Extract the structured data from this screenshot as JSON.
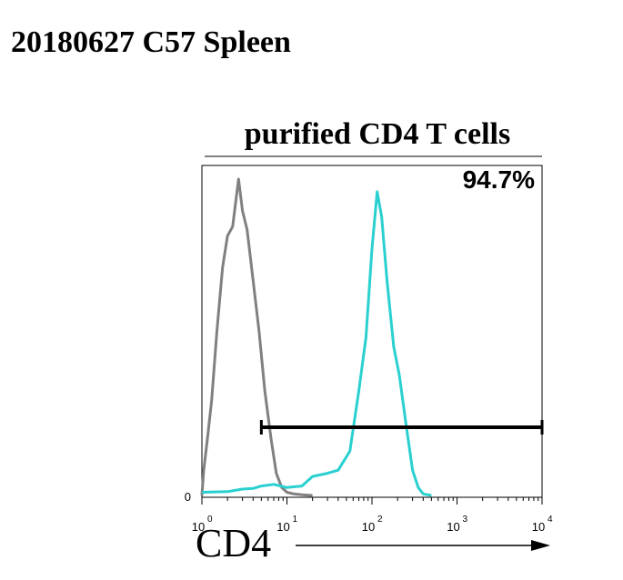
{
  "figure_title": "20180627 C57 Spleen",
  "chart_data": {
    "type": "line",
    "title": "purified CD4 T cells",
    "xlabel": "CD4",
    "x_scale": "log",
    "xlim": [
      1,
      10000
    ],
    "x_ticks": [
      {
        "base": "10",
        "exp": "0",
        "value": 1
      },
      {
        "base": "10",
        "exp": "1",
        "value": 10
      },
      {
        "base": "10",
        "exp": "2",
        "value": 100
      },
      {
        "base": "10",
        "exp": "3",
        "value": 1000
      },
      {
        "base": "10",
        "exp": "4",
        "value": 10000
      }
    ],
    "y_tick_label": "0",
    "gate": {
      "label": "94.7%",
      "from": 5,
      "to": 10000
    },
    "series": [
      {
        "color": "#808080",
        "x": [
          1,
          1.05,
          1.15,
          1.3,
          1.5,
          1.75,
          2.0,
          2.3,
          2.7,
          3.0,
          3.4,
          4.0,
          4.7,
          5.5,
          6.5,
          7.5,
          8.7,
          10,
          12,
          15,
          20
        ],
        "y": [
          0,
          80,
          170,
          300,
          520,
          720,
          820,
          850,
          1000,
          900,
          840,
          680,
          520,
          330,
          180,
          70,
          25,
          10,
          5,
          2,
          0
        ]
      },
      {
        "color": "#2ad0d0",
        "x": [
          1,
          2,
          3,
          4,
          5,
          7,
          10,
          15,
          20,
          30,
          40,
          55,
          70,
          85,
          100,
          115,
          130,
          150,
          180,
          210,
          250,
          300,
          350,
          400,
          500
        ],
        "y": [
          10,
          12,
          20,
          22,
          30,
          35,
          25,
          30,
          60,
          70,
          80,
          140,
          330,
          500,
          780,
          960,
          880,
          680,
          470,
          380,
          230,
          80,
          25,
          5,
          0
        ]
      }
    ]
  }
}
